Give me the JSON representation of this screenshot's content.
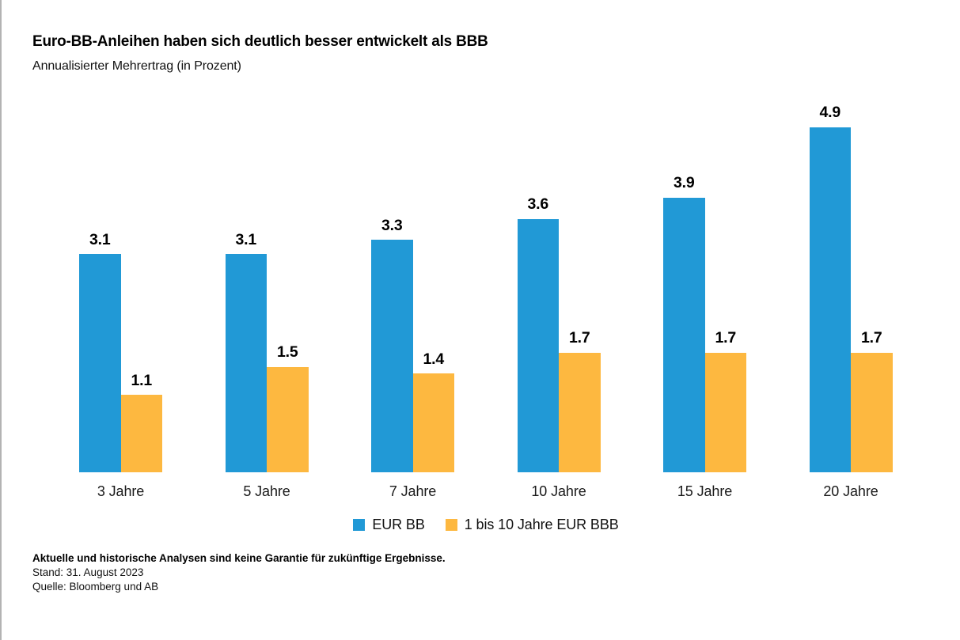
{
  "title": "Euro-BB-Anleihen haben sich deutlich besser entwickelt als BBB",
  "subtitle": "Annualisierter Mehrertrag (in Prozent)",
  "chart_data": {
    "type": "bar",
    "title": "Euro-BB-Anleihen haben sich deutlich besser entwickelt als BBB",
    "subtitle": "Annualisierter Mehrertrag (in Prozent)",
    "categories": [
      "3 Jahre",
      "5 Jahre",
      "7 Jahre",
      "10 Jahre",
      "15 Jahre",
      "20 Jahre"
    ],
    "series": [
      {
        "name": "EUR BB",
        "color": "#2199D6",
        "values": [
          3.1,
          3.1,
          3.3,
          3.6,
          3.9,
          4.9
        ]
      },
      {
        "name": "1 bis 10 Jahre EUR BBB",
        "color": "#FDB840",
        "values": [
          1.1,
          1.5,
          1.4,
          1.7,
          1.7,
          1.7
        ]
      }
    ],
    "xlabel": "",
    "ylabel": "",
    "ylim": [
      0,
      5
    ],
    "grid": false,
    "axes_visible": false,
    "legend_position": "bottom",
    "value_labels": true,
    "value_label_format": "one-decimal"
  },
  "footer": {
    "disclaimer": "Aktuelle und historische Analysen sind keine Garantie für zukünftige Ergebnisse.",
    "stand": "Stand: 31. August 2023",
    "quelle": "Quelle: Bloomberg und AB"
  }
}
